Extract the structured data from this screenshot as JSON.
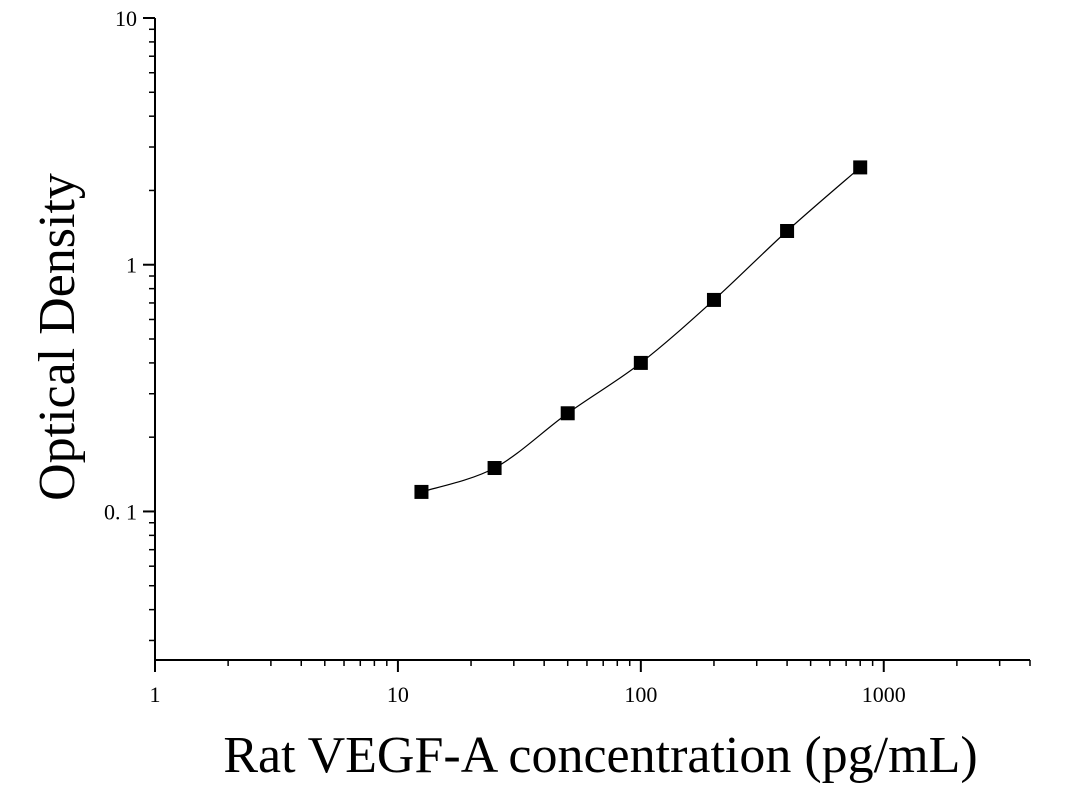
{
  "chart_data": {
    "type": "scatter",
    "title": "",
    "xlabel": "Rat VEGF-A concentration (pg/mL)",
    "ylabel": "Optical Density",
    "x_scale": "log",
    "y_scale": "log",
    "xlim": [
      1,
      4000
    ],
    "ylim": [
      0.025,
      10
    ],
    "x_ticks": [
      {
        "value": 1,
        "label": "1"
      },
      {
        "value": 10,
        "label": "10"
      },
      {
        "value": 100,
        "label": "100"
      },
      {
        "value": 1000,
        "label": "1000"
      }
    ],
    "y_ticks": [
      {
        "value": 0.1,
        "label": "0. 1"
      },
      {
        "value": 1,
        "label": "1"
      },
      {
        "value": 10,
        "label": "10"
      }
    ],
    "grid": false,
    "legend": "none",
    "marker": "square",
    "color": "#000000",
    "series": [
      {
        "x": [
          12.5,
          25,
          50,
          100,
          200,
          400,
          800
        ],
        "y": [
          0.12,
          0.15,
          0.25,
          0.4,
          0.72,
          1.37,
          2.48
        ]
      }
    ],
    "fit_curve": true
  }
}
